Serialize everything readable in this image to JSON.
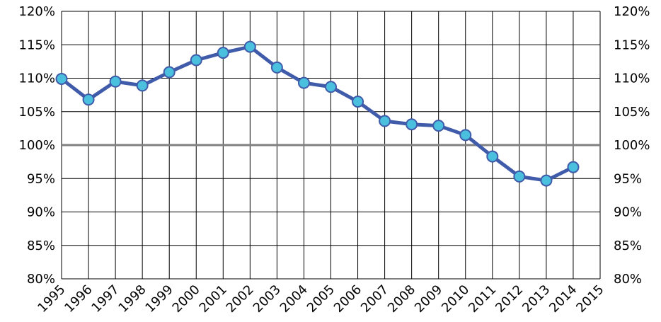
{
  "chart_data": {
    "type": "line",
    "title": "",
    "xlabel": "",
    "ylabel": "",
    "x": [
      "1995",
      "1996",
      "1997",
      "1998",
      "1999",
      "2000",
      "2001",
      "2002",
      "2003",
      "2004",
      "2005",
      "2006",
      "2007",
      "2008",
      "2009",
      "2010",
      "2011",
      "2012",
      "2013",
      "2014"
    ],
    "x_ticks": [
      "1995",
      "1996",
      "1997",
      "1998",
      "1999",
      "2000",
      "2001",
      "2002",
      "2003",
      "2004",
      "2005",
      "2006",
      "2007",
      "2008",
      "2009",
      "2010",
      "2011",
      "2012",
      "2013",
      "2014",
      "2015"
    ],
    "y_ticks": [
      "80%",
      "85%",
      "90%",
      "95%",
      "100%",
      "105%",
      "110%",
      "115%",
      "120%"
    ],
    "ylim": [
      80,
      120
    ],
    "y_unit": "%",
    "reference_line": 100,
    "grid": true,
    "secondary_y_axis": true,
    "series": [
      {
        "values": [
          109.9,
          106.8,
          109.5,
          108.9,
          110.9,
          112.7,
          113.8,
          114.7,
          111.6,
          109.3,
          108.7,
          106.5,
          103.6,
          103.1,
          102.9,
          101.5,
          98.3,
          95.3,
          94.7,
          96.7
        ]
      }
    ],
    "colors": {
      "line": "#3F5BA9",
      "marker_fill": "#4BC0DE",
      "marker_stroke": "#3F5BA9",
      "grid": "#000000",
      "reference_line": "#808080"
    }
  }
}
